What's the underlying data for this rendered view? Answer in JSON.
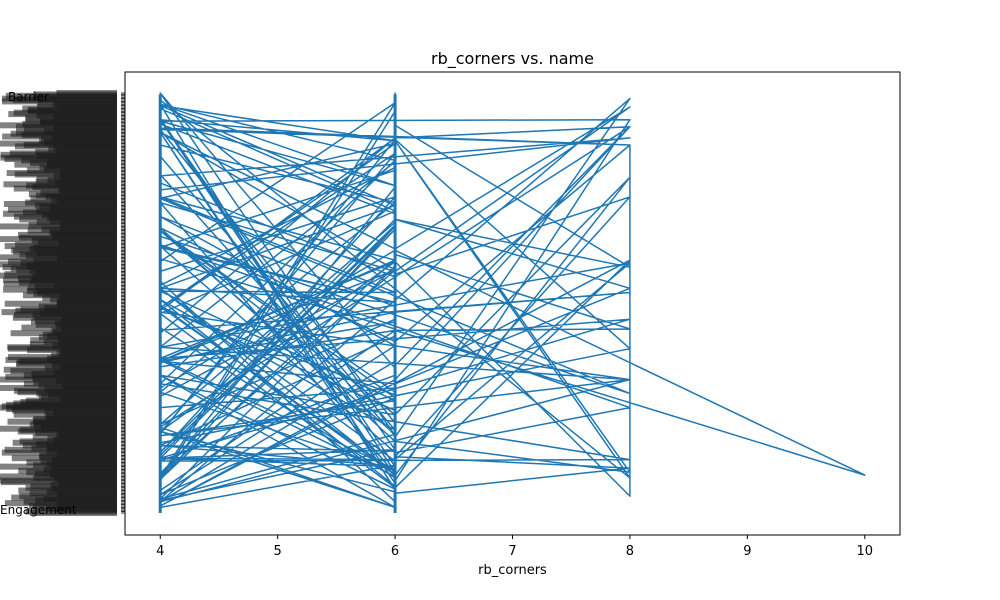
{
  "chart_data": {
    "type": "line",
    "title": "rb_corners vs. name",
    "xlabel": "rb_corners",
    "ylabel": "",
    "xlim": [
      3.7,
      10.3
    ],
    "x_ticks": [
      4,
      5,
      6,
      7,
      8,
      9,
      10
    ],
    "y_category_count": 300,
    "y_labels_legible": [
      "Engagement",
      "Sensor",
      "Barrier"
    ],
    "grid": false,
    "legend": "none",
    "color": "#1f77b4",
    "sample_points": [
      {
        "x": 4,
        "y": 298
      },
      {
        "x": 6,
        "y": 4
      },
      {
        "x": 4,
        "y": 280
      },
      {
        "x": 8,
        "y": 275
      },
      {
        "x": 4,
        "y": 262
      },
      {
        "x": 6,
        "y": 250
      },
      {
        "x": 8,
        "y": 225
      },
      {
        "x": 4,
        "y": 200
      },
      {
        "x": 6,
        "y": 182
      },
      {
        "x": 8,
        "y": 175
      },
      {
        "x": 4,
        "y": 160
      },
      {
        "x": 6,
        "y": 150
      },
      {
        "x": 8,
        "y": 85
      },
      {
        "x": 4,
        "y": 130
      },
      {
        "x": 10,
        "y": 52
      },
      {
        "x": 8,
        "y": 38
      },
      {
        "x": 4,
        "y": 110
      },
      {
        "x": 6,
        "y": 92
      },
      {
        "x": 8,
        "y": 12
      },
      {
        "x": 4,
        "y": 5
      }
    ]
  }
}
